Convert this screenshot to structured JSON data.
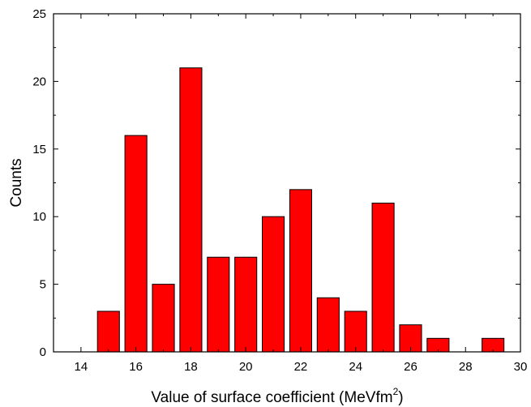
{
  "chart_data": {
    "type": "bar",
    "x": [
      15,
      16,
      17,
      18,
      19,
      20,
      21,
      22,
      23,
      24,
      25,
      26,
      27,
      29
    ],
    "values": [
      3,
      16,
      5,
      21,
      7,
      7,
      10,
      12,
      4,
      3,
      11,
      2,
      1,
      1
    ],
    "xlabel": "Value of surface coefficient (MeVfm",
    "xlabel_superscript": "2",
    "xlabel_suffix": ")",
    "ylabel": "Counts",
    "xlim": [
      13,
      30
    ],
    "ylim": [
      0,
      25
    ],
    "xticks": [
      14,
      16,
      18,
      20,
      22,
      24,
      26,
      28,
      30
    ],
    "yticks": [
      0,
      5,
      10,
      15,
      20,
      25
    ],
    "bar_width": 0.8,
    "bar_color": "#ff0000",
    "edge_color": "#000000",
    "grid": false,
    "legend": "none"
  }
}
